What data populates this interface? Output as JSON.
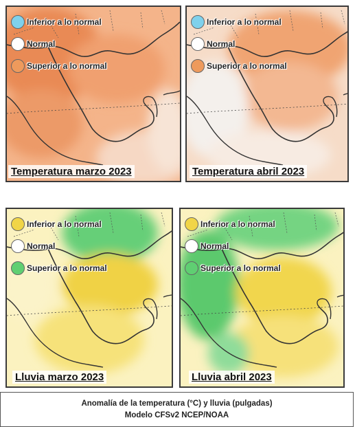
{
  "temperature_legend": {
    "items": [
      {
        "label": "Inferior a lo normal",
        "color": "#7fd1ec"
      },
      {
        "label": "Normal",
        "color": "#ffffff"
      },
      {
        "label": "Superior a lo normal",
        "color": "#ee9a5c"
      }
    ]
  },
  "rain_legend": {
    "items": [
      {
        "label": "Inferior a lo normal",
        "color": "#f1d547"
      },
      {
        "label": "Normal",
        "color": "#ffffff"
      },
      {
        "label": "Superior a lo normal",
        "color": "#5fcf72"
      }
    ]
  },
  "panels": [
    {
      "title": "Temperatura marzo 2023"
    },
    {
      "title": "Temperatura abril 2023"
    },
    {
      "title": "Lluvia marzo 2023"
    },
    {
      "title": "Lluvia abril 2023"
    }
  ],
  "caption": {
    "line1": "Anomalía de la temperatura (°C) y lluvia (pulgadas)",
    "line2": "Modelo CFSv2 NCEP/NOAA"
  }
}
